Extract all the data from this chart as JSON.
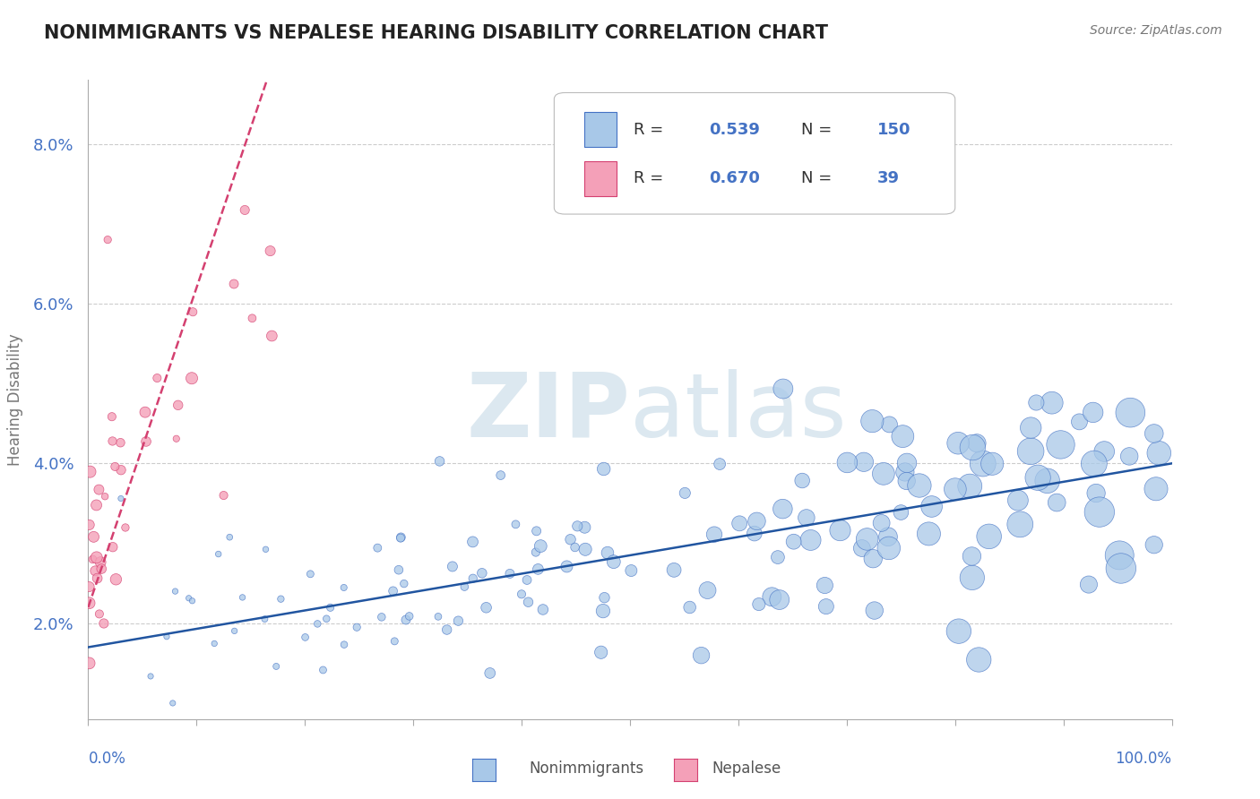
{
  "title": "NONIMMIGRANTS VS NEPALESE HEARING DISABILITY CORRELATION CHART",
  "source": "Source: ZipAtlas.com",
  "ylabel": "Hearing Disability",
  "yticks": [
    0.02,
    0.04,
    0.06,
    0.08
  ],
  "ytick_labels": [
    "2.0%",
    "4.0%",
    "6.0%",
    "8.0%"
  ],
  "xmin": 0.0,
  "xmax": 1.0,
  "ymin": 0.008,
  "ymax": 0.088,
  "blue_color": "#a8c8e8",
  "blue_edge_color": "#4472c4",
  "pink_color": "#f4a0b8",
  "pink_edge_color": "#d44070",
  "blue_line_color": "#2155a0",
  "pink_line_color": "#d44070",
  "watermark_color": "#dce8f0",
  "background": "#ffffff",
  "grid_color": "#cccccc",
  "tick_color": "#4472c4",
  "ylabel_color": "#777777",
  "title_color": "#222222",
  "source_color": "#777777"
}
